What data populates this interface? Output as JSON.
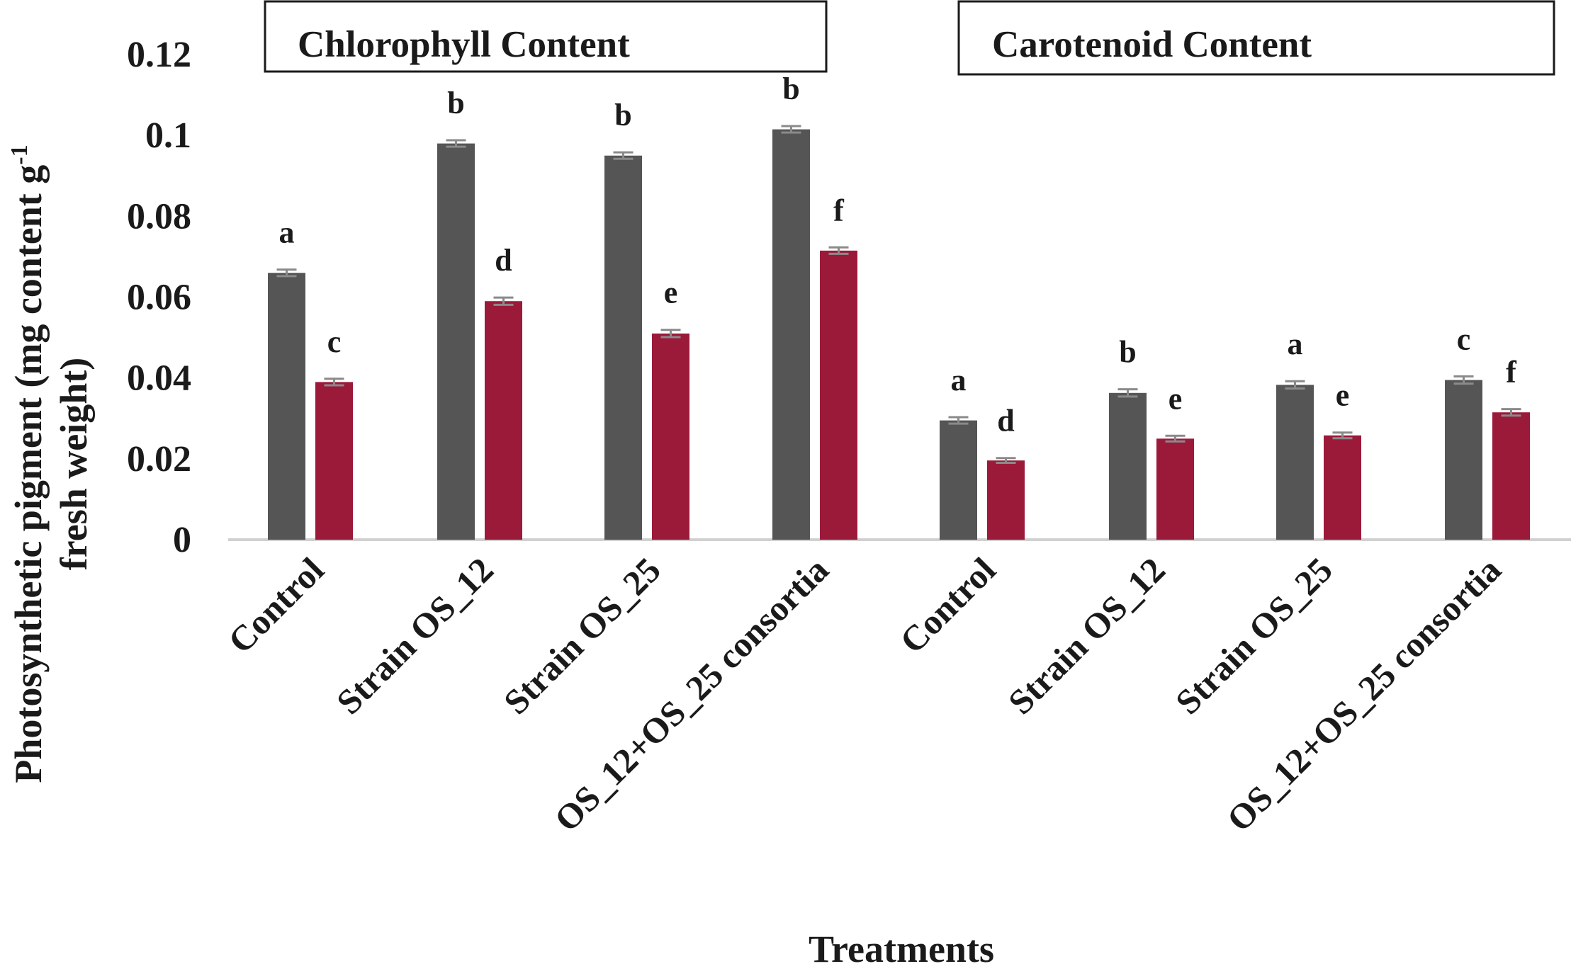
{
  "chart_data": {
    "type": "bar",
    "title": "",
    "xlabel": "Treatments",
    "ylabel_line1": "Photosynthetic pigment (mg content g",
    "ylabel_sup": "-1",
    "ylabel_line2": "fresh weight)",
    "ylim": [
      0,
      0.12
    ],
    "yticks": [
      0,
      0.02,
      0.04,
      0.06,
      0.08,
      0.1,
      0.12
    ],
    "ytick_labels": [
      "0",
      "0.02",
      "0.04",
      "0.06",
      "0.08",
      "0.1",
      "0.12"
    ],
    "grid": false,
    "series_colors": [
      "#555555",
      "#9b1a3a"
    ],
    "groups": [
      {
        "title": "Chlorophyll Content",
        "categories": [
          "Control",
          "Strain OS_12",
          "Strain OS_25",
          "OS_12+OS_25 consortia"
        ],
        "series": [
          {
            "values": [
              0.066,
              0.098,
              0.095,
              0.1015
            ],
            "errors": [
              0.0008,
              0.0008,
              0.0008,
              0.0008
            ],
            "labels": [
              "a",
              "b",
              "b",
              "b"
            ]
          },
          {
            "values": [
              0.039,
              0.059,
              0.051,
              0.0715
            ],
            "errors": [
              0.0008,
              0.0009,
              0.0009,
              0.0008
            ],
            "labels": [
              "c",
              "d",
              "e",
              "f"
            ]
          }
        ]
      },
      {
        "title": "Carotenoid Content",
        "categories": [
          "Control",
          "Strain OS_12",
          "Strain OS_25",
          "OS_12+OS_25 consortia"
        ],
        "series": [
          {
            "values": [
              0.0295,
              0.0363,
              0.0383,
              0.0395
            ],
            "errors": [
              0.0008,
              0.0009,
              0.0009,
              0.0009
            ],
            "labels": [
              "a",
              "b",
              "a",
              "c"
            ]
          },
          {
            "values": [
              0.0196,
              0.025,
              0.0258,
              0.0315
            ],
            "errors": [
              0.0006,
              0.0007,
              0.0007,
              0.0008
            ],
            "labels": [
              "d",
              "e",
              "e",
              "f"
            ]
          }
        ]
      }
    ]
  }
}
